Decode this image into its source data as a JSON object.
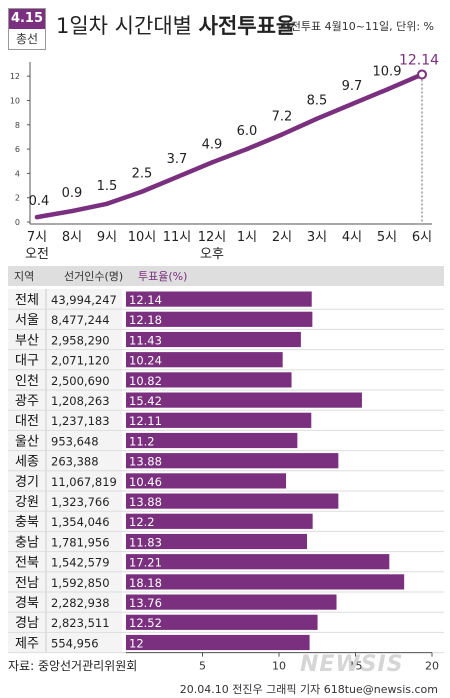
{
  "badge": {
    "top": "4.15",
    "bottom": "총선"
  },
  "header": {
    "title_pre": "1일차 시간대별 ",
    "title_bold": "사전투표율",
    "subtitle": "사전투표 4월10~11일, 단위: %"
  },
  "colors": {
    "accent": "#7a2f7f",
    "bar": "#7a2f7f",
    "text_on_bar": "#ffffff"
  },
  "chart_data": [
    {
      "type": "line",
      "x": [
        "7시",
        "8시",
        "9시",
        "10시",
        "11시",
        "12시",
        "1시",
        "2시",
        "3시",
        "4시",
        "5시",
        "6시"
      ],
      "x_periods": [
        "오전",
        "",
        "",
        "",
        "",
        "오후",
        "",
        "",
        "",
        "",
        "",
        ""
      ],
      "values": [
        0.4,
        0.9,
        1.5,
        2.5,
        3.7,
        4.9,
        6.0,
        7.2,
        8.5,
        9.7,
        10.9,
        12.14
      ],
      "value_labels": [
        "0.4",
        "0.9",
        "1.5",
        "2.5",
        "3.7",
        "4.9",
        "6.0",
        "7.2",
        "8.5",
        "9.7",
        "10.9",
        "12.14"
      ],
      "yticks": [
        "0",
        "2",
        "4",
        "6",
        "8",
        "10",
        "12"
      ],
      "ylim": [
        0,
        13
      ],
      "grid": false
    },
    {
      "type": "bar",
      "orientation": "horizontal",
      "headers": [
        "지역",
        "선거인수(명)",
        "투표율(%)"
      ],
      "categories": [
        "전체",
        "서울",
        "부산",
        "대구",
        "인천",
        "광주",
        "대전",
        "울산",
        "세종",
        "경기",
        "강원",
        "충북",
        "충남",
        "전북",
        "전남",
        "경북",
        "경남",
        "제주"
      ],
      "electors": [
        "43,994,247",
        "8,477,244",
        "2,958,290",
        "2,071,120",
        "2,500,690",
        "1,208,263",
        "1,237,183",
        "953,648",
        "263,388",
        "11,067,819",
        "1,323,766",
        "1,354,046",
        "1,781,956",
        "1,542,579",
        "1,592,850",
        "2,282,938",
        "2,823,511",
        "554,956"
      ],
      "values": [
        12.14,
        12.18,
        11.43,
        10.24,
        10.82,
        15.42,
        12.11,
        11.2,
        13.88,
        10.46,
        13.88,
        12.2,
        11.83,
        17.21,
        18.18,
        13.76,
        12.52,
        12
      ],
      "value_labels": [
        "12.14",
        "12.18",
        "11.43",
        "10.24",
        "10.82",
        "15.42",
        "12.11",
        "11.2",
        "13.88",
        "10.46",
        "13.88",
        "12.2",
        "11.83",
        "17.21",
        "18.18",
        "13.76",
        "12.52",
        "12"
      ],
      "xticks": [
        "5",
        "10",
        "15",
        "20"
      ],
      "xlim": [
        0,
        20
      ]
    }
  ],
  "footer": {
    "source": "자료: 중앙선거관리위원회",
    "credit": "20.04.10 전진우 그래픽 기자 618tue@newsis.com",
    "watermark": "NEWSIS"
  }
}
